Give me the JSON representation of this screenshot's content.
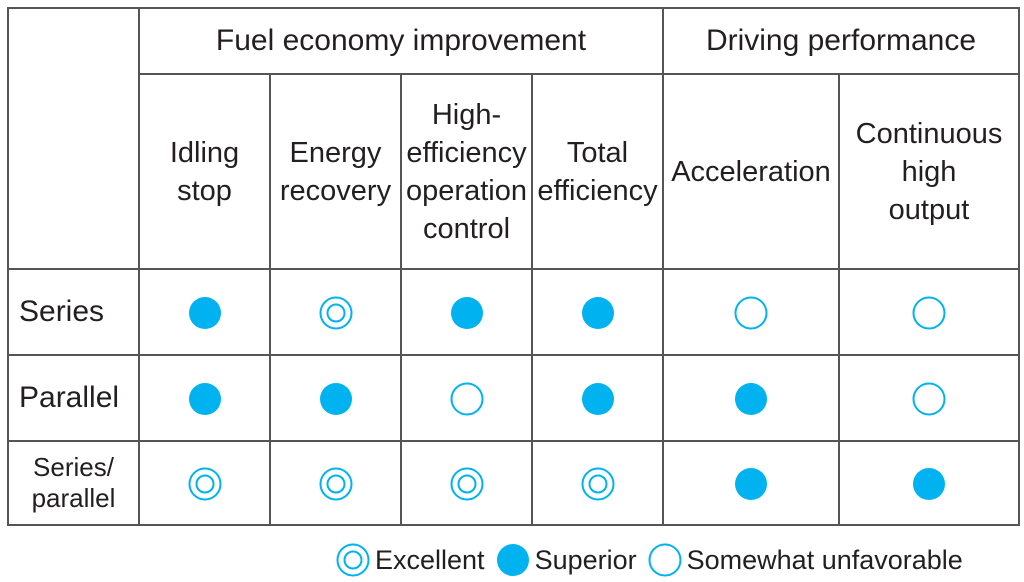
{
  "colors": {
    "accent": "#00b2ef",
    "grid": "#555555",
    "text": "#231f20"
  },
  "groups": [
    {
      "label": "Fuel economy improvement"
    },
    {
      "label": "Driving performance"
    }
  ],
  "columns": [
    {
      "lines": [
        "Idling",
        "stop"
      ]
    },
    {
      "lines": [
        "Energy",
        "recovery"
      ]
    },
    {
      "lines": [
        "High-",
        "efficiency",
        "operation",
        "control"
      ]
    },
    {
      "lines": [
        "Total",
        "efficiency"
      ]
    },
    {
      "lines": [
        "Acceleration"
      ]
    },
    {
      "lines": [
        "Continuous",
        "high",
        "output"
      ]
    }
  ],
  "rows": [
    {
      "lines": [
        "Series"
      ],
      "ratings": [
        "superior",
        "excellent",
        "superior",
        "superior",
        "somewhat-unfavorable",
        "somewhat-unfavorable"
      ]
    },
    {
      "lines": [
        "Parallel"
      ],
      "ratings": [
        "superior",
        "superior",
        "somewhat-unfavorable",
        "superior",
        "superior",
        "somewhat-unfavorable"
      ]
    },
    {
      "lines": [
        "Series/",
        "parallel"
      ],
      "ratings": [
        "excellent",
        "excellent",
        "excellent",
        "excellent",
        "superior",
        "superior"
      ]
    }
  ],
  "legend": [
    {
      "symbol": "excellent",
      "label": "Excellent"
    },
    {
      "symbol": "superior",
      "label": "Superior"
    },
    {
      "symbol": "somewhat-unfavorable",
      "label": "Somewhat unfavorable"
    }
  ]
}
